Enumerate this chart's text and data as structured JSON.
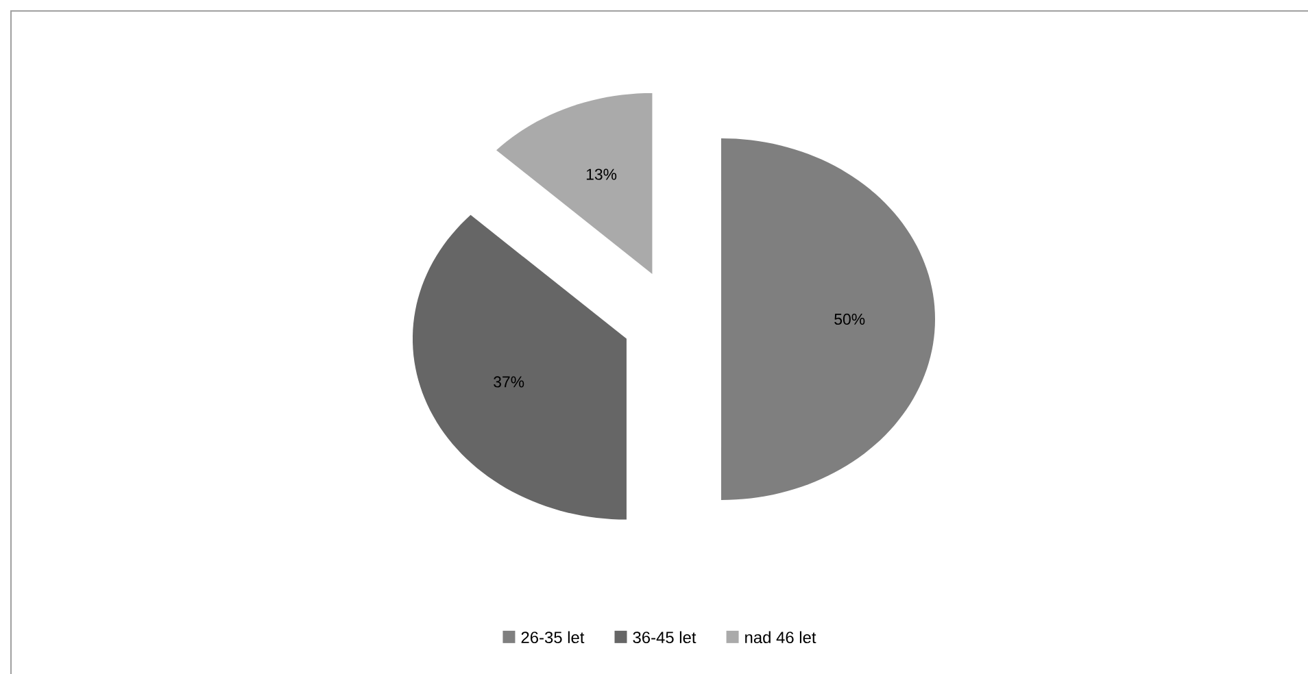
{
  "chart_data": {
    "type": "pie",
    "categories": [
      "26-35 let",
      "36-45 let",
      "nad 46 let"
    ],
    "values": [
      50,
      37,
      13
    ],
    "value_labels": [
      "50%",
      "37%",
      "13%"
    ],
    "colors": [
      "#7f7f7f",
      "#666666",
      "#aaaaaa"
    ],
    "legend": "bottom"
  }
}
